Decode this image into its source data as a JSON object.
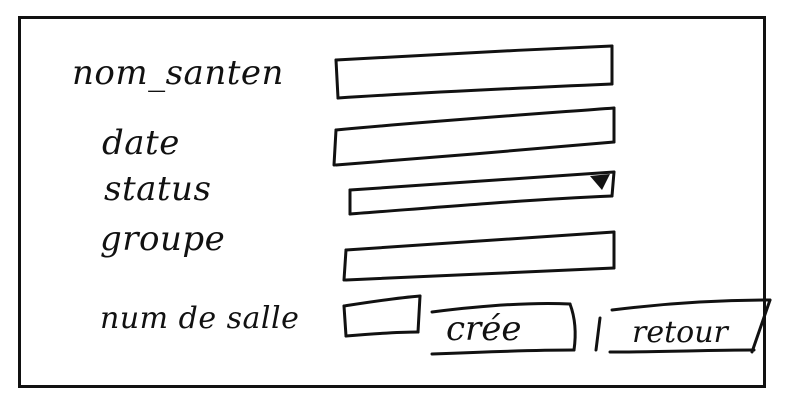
{
  "form": {
    "fields": [
      {
        "label": "nom_santen",
        "value": "",
        "placeholder": ""
      },
      {
        "label": "date",
        "value": "",
        "placeholder": ""
      },
      {
        "label": "status",
        "value": "",
        "placeholder": ""
      },
      {
        "label": "groupe",
        "value": "",
        "placeholder": ""
      },
      {
        "label": "num de salle",
        "value": "",
        "placeholder": ""
      }
    ],
    "status_arrow_icon": "dropdown-arrow-icon"
  },
  "actions": {
    "create_label": "crée",
    "back_label": "retour"
  },
  "colors": {
    "ink": "#111111",
    "paper": "#ffffff"
  }
}
